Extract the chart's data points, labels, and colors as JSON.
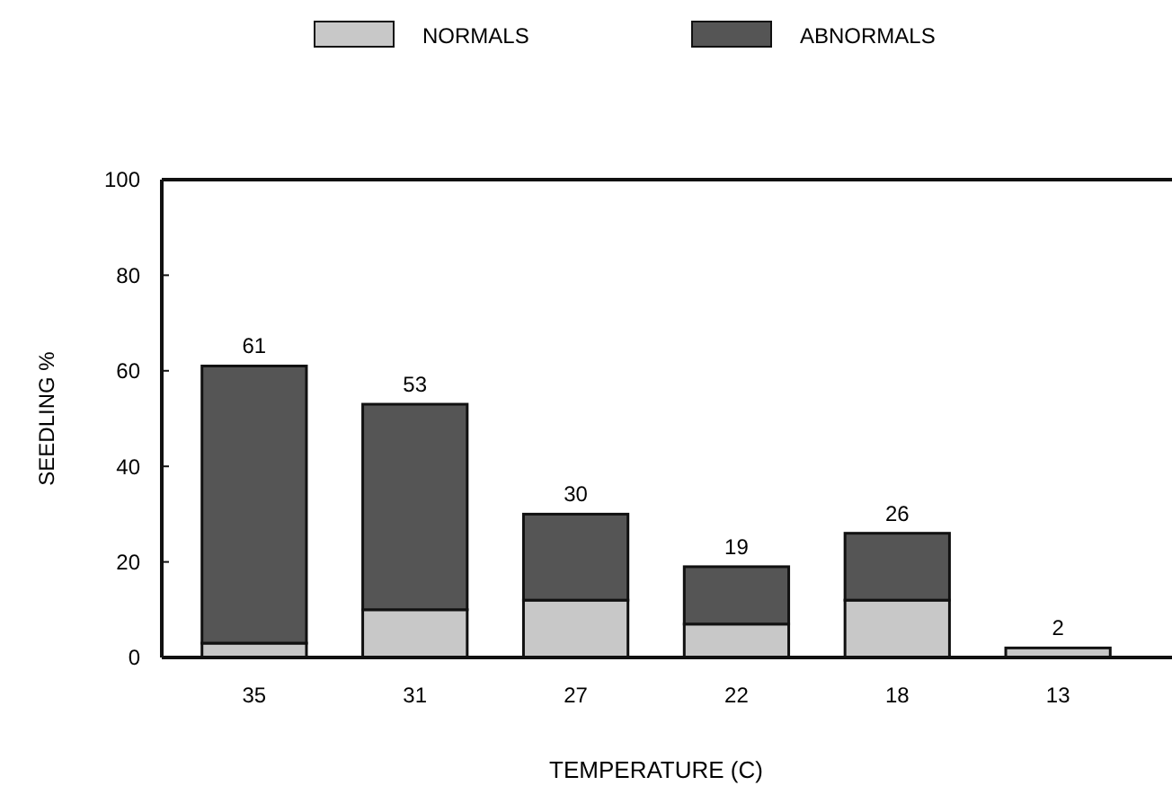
{
  "chart_data": {
    "type": "bar",
    "stacked": true,
    "xlabel": "TEMPERATURE (C)",
    "ylabel": "SEEDLING %",
    "categories": [
      "35",
      "31",
      "27",
      "22",
      "18",
      "13"
    ],
    "series": [
      {
        "name": "NORMALS",
        "color": "#c8c8c8",
        "values": [
          3,
          10,
          12,
          7,
          12,
          2
        ]
      },
      {
        "name": "ABNORMALS",
        "color": "#555555",
        "values": [
          58,
          43,
          18,
          12,
          14,
          0
        ]
      }
    ],
    "totals": [
      "61",
      "53",
      "30",
      "19",
      "26",
      "2"
    ],
    "ylim": [
      0,
      100
    ],
    "yticks": [
      0,
      20,
      40,
      60,
      80,
      100
    ],
    "grid": false,
    "legend": "top"
  }
}
